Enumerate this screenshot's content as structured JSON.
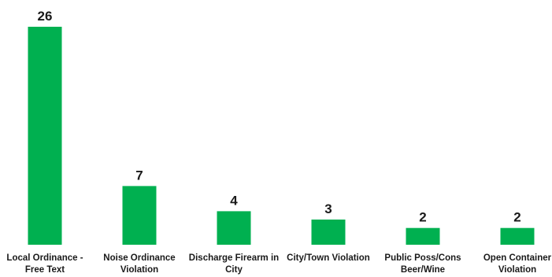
{
  "chart_data": {
    "type": "bar",
    "categories": [
      [
        "Local Ordinance -",
        "Free Text"
      ],
      [
        "Noise Ordinance",
        "Violation"
      ],
      [
        "Discharge Firearm in",
        "City"
      ],
      [
        "City/Town Violation"
      ],
      [
        "Public Poss/Cons",
        "Beer/Wine"
      ],
      [
        "Open Container",
        "Violation"
      ]
    ],
    "values": [
      26,
      7,
      4,
      3,
      2,
      2
    ],
    "data_labels": true,
    "grid": false,
    "legend": "none",
    "ylim": [
      0,
      26
    ],
    "colors": {
      "bar": "#00b050",
      "text": "#1a1a1a"
    }
  }
}
